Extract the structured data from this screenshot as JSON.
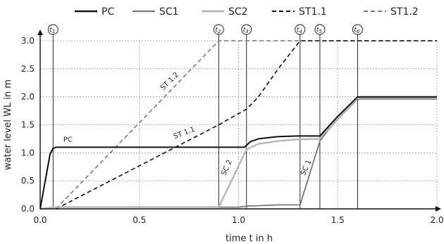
{
  "chart_data": {
    "type": "line",
    "xlabel": "time t in h",
    "ylabel": "water level WL in m",
    "xlim": [
      0,
      2
    ],
    "ylim": [
      0,
      3
    ],
    "x_ticks": [
      "0.0",
      "0.5",
      "1.0",
      "1.5",
      "2.0"
    ],
    "y_ticks": [
      "0.0",
      "0.5",
      "1.0",
      "1.5",
      "2.0",
      "2.5",
      "3.0"
    ],
    "grid": true,
    "legend_position": "top",
    "series": [
      {
        "name": "PC",
        "color": "#111111",
        "dash": "solid",
        "width": 2,
        "x": [
          0,
          0.05,
          0.065,
          0.08,
          1.03,
          1.06,
          1.1,
          1.2,
          1.3,
          1.41,
          1.43,
          1.5,
          1.6,
          2.0
        ],
        "y": [
          0,
          0.98,
          1.08,
          1.1,
          1.1,
          1.2,
          1.25,
          1.29,
          1.3,
          1.3,
          1.38,
          1.65,
          2.0,
          2.0
        ]
      },
      {
        "name": "SC1",
        "color": "#777777",
        "dash": "solid",
        "width": 1.8,
        "x": [
          0,
          0.08,
          1.0,
          1.05,
          1.2,
          1.31,
          1.41,
          1.45,
          1.5,
          1.6,
          2.0
        ],
        "y": [
          0,
          0.03,
          0.03,
          0.05,
          0.07,
          0.07,
          1.21,
          1.4,
          1.6,
          1.96,
          1.96
        ]
      },
      {
        "name": "SC2",
        "color": "#b5b5b5",
        "dash": "solid",
        "width": 2.4,
        "x": [
          0,
          0.08,
          0.9,
          1.04,
          1.1,
          1.2,
          1.3,
          1.41,
          1.43,
          1.5,
          1.6,
          2.0
        ],
        "y": [
          0,
          0.03,
          0.03,
          1.06,
          1.16,
          1.21,
          1.24,
          1.25,
          1.34,
          1.6,
          1.98,
          1.98
        ]
      },
      {
        "name": "ST1.1",
        "color": "#111111",
        "dash": "6,4",
        "width": 1.6,
        "x": [
          0.08,
          0.9,
          1.04,
          1.1,
          1.2,
          1.31,
          2.0
        ],
        "y": [
          0,
          1.5,
          1.78,
          2.0,
          2.5,
          3.0,
          3.0
        ]
      },
      {
        "name": "ST1.2",
        "color": "#777777",
        "dash": "6,4",
        "width": 1.6,
        "x": [
          0.08,
          0.9,
          2.0
        ],
        "y": [
          0,
          3.0,
          3.0
        ]
      }
    ],
    "annotations": [
      {
        "text": "PC",
        "x": 0.14,
        "y": 1.2,
        "rotate": 0
      },
      {
        "text": "ST 1.2",
        "x": 0.66,
        "y": 2.25,
        "rotate": -44
      },
      {
        "text": "ST 1.1",
        "x": 0.73,
        "y": 1.32,
        "rotate": -21
      },
      {
        "text": "SC 2",
        "x": 0.95,
        "y": 0.72,
        "rotate": -66
      },
      {
        "text": "SC 1",
        "x": 1.35,
        "y": 0.72,
        "rotate": -66
      }
    ],
    "time_markers": [
      {
        "label": "t",
        "sub": "1",
        "x": 0.065
      },
      {
        "label": "t",
        "sub": "2",
        "x": 0.9
      },
      {
        "label": "t",
        "sub": "3",
        "x": 1.04
      },
      {
        "label": "t",
        "sub": "4",
        "x": 1.31
      },
      {
        "label": "t",
        "sub": "5",
        "x": 1.41
      },
      {
        "label": "t",
        "sub": "6",
        "x": 1.6
      }
    ]
  }
}
